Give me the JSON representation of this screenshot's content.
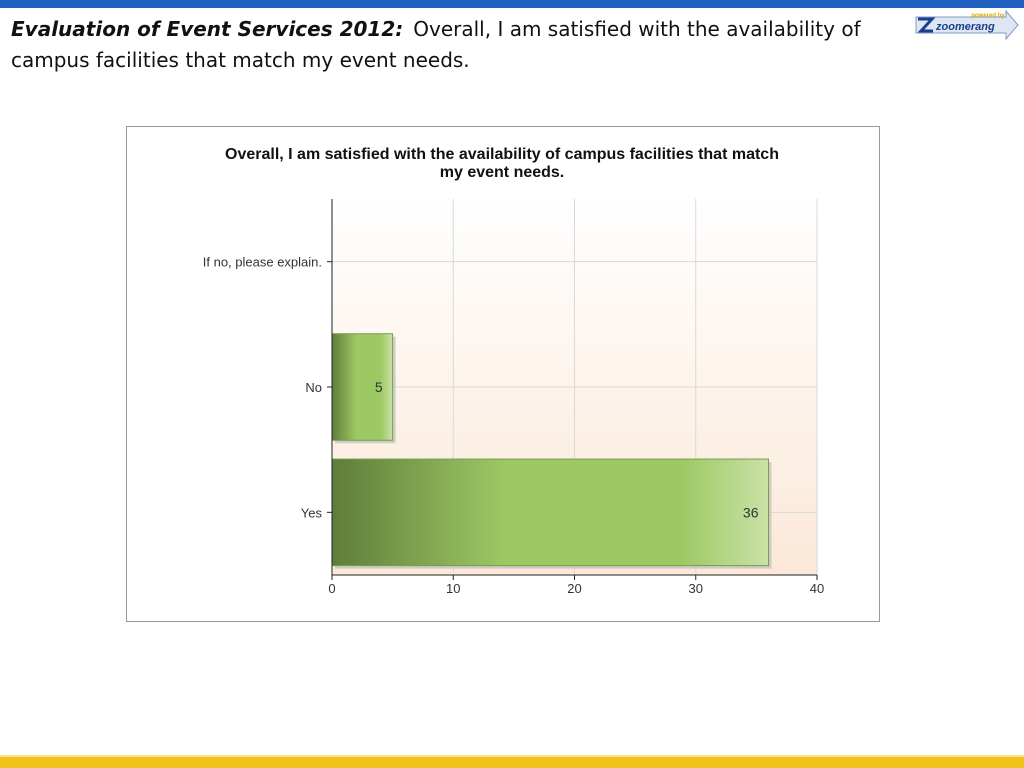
{
  "slide": {
    "title_lead": "Evaluation of Event Services 2012:",
    "title_rest": "Overall, I am satisfied with the availability of campus facilities that match my event needs."
  },
  "logo": {
    "tagline": "powered by",
    "name": "zoomerang"
  },
  "colors": {
    "top_bar": "#1f5fbf",
    "bottom_bar": "#f2c21b",
    "bar_dark": "#5e7d3a",
    "bar_mid": "#9dc965",
    "bar_light": "#c9e2a6"
  },
  "chart_data": {
    "type": "bar",
    "orientation": "horizontal",
    "title_lines": [
      "Overall, I am satisfied with the availability of campus facilities that match",
      "my event needs."
    ],
    "categories": [
      "If no, please explain.",
      "No",
      "Yes"
    ],
    "values": [
      null,
      5,
      36
    ],
    "value_labels": [
      "",
      "5",
      "36"
    ],
    "xlim": [
      0,
      40
    ],
    "xticks": [
      0,
      10,
      20,
      30,
      40
    ],
    "grid": true
  }
}
